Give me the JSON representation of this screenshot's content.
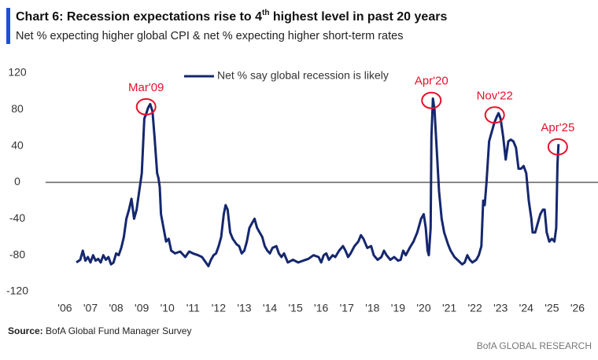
{
  "chart_data": {
    "type": "line",
    "title": [
      "Chart 6: Recession expectations rise to 4",
      "th",
      " highest level in past 20 years"
    ],
    "subtitle": "Net % expecting higher global CPI & net % expecting higher short-term rates",
    "source_label": "Source:",
    "source": " BofA Global Fund Manager Survey",
    "brand": "BofA GLOBAL RESEARCH",
    "legend": "top",
    "x": [
      2006.45,
      2006.6,
      2006.7,
      2006.8,
      2006.9,
      2007.0,
      2007.1,
      2007.2,
      2007.3,
      2007.4,
      2007.5,
      2007.6,
      2007.7,
      2007.8,
      2007.9,
      2008.0,
      2008.1,
      2008.2,
      2008.3,
      2008.4,
      2008.5,
      2008.6,
      2008.7,
      2008.8,
      2008.9,
      2009.0,
      2009.05,
      2009.1,
      2009.17,
      2009.25,
      2009.33,
      2009.42,
      2009.5,
      2009.6,
      2009.65,
      2009.7,
      2009.75,
      2009.85,
      2009.95,
      2010.05,
      2010.15,
      2010.3,
      2010.5,
      2010.7,
      2010.85,
      2011.0,
      2011.2,
      2011.35,
      2011.5,
      2011.6,
      2011.7,
      2011.8,
      2011.9,
      2012.0,
      2012.1,
      2012.2,
      2012.27,
      2012.35,
      2012.45,
      2012.55,
      2012.7,
      2012.8,
      2012.9,
      2013.0,
      2013.1,
      2013.2,
      2013.3,
      2013.4,
      2013.5,
      2013.6,
      2013.7,
      2013.8,
      2013.9,
      2014.0,
      2014.1,
      2014.25,
      2014.35,
      2014.45,
      2014.55,
      2014.7,
      2014.9,
      2015.1,
      2015.3,
      2015.5,
      2015.7,
      2015.9,
      2016.0,
      2016.1,
      2016.2,
      2016.3,
      2016.45,
      2016.55,
      2016.7,
      2016.85,
      2016.95,
      2017.05,
      2017.15,
      2017.3,
      2017.45,
      2017.55,
      2017.65,
      2017.8,
      2017.95,
      2018.05,
      2018.2,
      2018.35,
      2018.45,
      2018.55,
      2018.7,
      2018.85,
      2019.0,
      2019.1,
      2019.2,
      2019.3,
      2019.45,
      2019.6,
      2019.75,
      2019.9,
      2020.0,
      2020.08,
      2020.15,
      2020.2,
      2020.27,
      2020.3,
      2020.36,
      2020.42,
      2020.5,
      2020.6,
      2020.7,
      2020.8,
      2020.95,
      2021.05,
      2021.2,
      2021.35,
      2021.5,
      2021.6,
      2021.7,
      2021.8,
      2021.9,
      2022.05,
      2022.15,
      2022.25,
      2022.32,
      2022.38,
      2022.45,
      2022.55,
      2022.65,
      2022.75,
      2022.85,
      2022.92,
      2023.0,
      2023.1,
      2023.2,
      2023.3,
      2023.4,
      2023.5,
      2023.6,
      2023.7,
      2023.8,
      2023.9,
      2024.0,
      2024.1,
      2024.2,
      2024.25,
      2024.35,
      2024.45,
      2024.55,
      2024.65,
      2024.72,
      2024.8,
      2024.9,
      2025.0,
      2025.1,
      2025.17,
      2025.22,
      2025.26
    ],
    "series": [
      {
        "name": "Net % say global recession is likely",
        "color": "#15276e",
        "values": [
          -88,
          -85,
          -75,
          -86,
          -82,
          -88,
          -80,
          -86,
          -84,
          -88,
          -80,
          -85,
          -82,
          -90,
          -88,
          -78,
          -80,
          -72,
          -60,
          -40,
          -30,
          -18,
          -40,
          -30,
          -10,
          10,
          40,
          70,
          75,
          82,
          86,
          78,
          50,
          10,
          5,
          -5,
          -35,
          -50,
          -65,
          -62,
          -75,
          -78,
          -76,
          -82,
          -76,
          -78,
          -80,
          -82,
          -88,
          -92,
          -85,
          -80,
          -78,
          -70,
          -60,
          -35,
          -25,
          -30,
          -55,
          -62,
          -68,
          -70,
          -78,
          -75,
          -65,
          -50,
          -45,
          -40,
          -50,
          -55,
          -60,
          -70,
          -75,
          -78,
          -72,
          -70,
          -78,
          -82,
          -78,
          -88,
          -85,
          -88,
          -86,
          -84,
          -80,
          -82,
          -88,
          -80,
          -78,
          -85,
          -80,
          -82,
          -75,
          -70,
          -75,
          -82,
          -78,
          -70,
          -65,
          -58,
          -62,
          -72,
          -70,
          -80,
          -85,
          -82,
          -75,
          -80,
          -85,
          -82,
          -86,
          -85,
          -75,
          -80,
          -72,
          -65,
          -55,
          -40,
          -35,
          -50,
          -75,
          -80,
          -50,
          50,
          92,
          80,
          40,
          -10,
          -40,
          -55,
          -68,
          -75,
          -82,
          -86,
          -90,
          -88,
          -80,
          -85,
          -88,
          -85,
          -80,
          -70,
          -20,
          -25,
          0,
          45,
          55,
          65,
          72,
          76,
          70,
          50,
          25,
          45,
          47,
          45,
          38,
          15,
          15,
          18,
          10,
          -20,
          -40,
          -55,
          -55,
          -45,
          -35,
          -30,
          -30,
          -55,
          -65,
          -62,
          -65,
          -50,
          20,
          42
        ]
      }
    ],
    "annotations": [
      {
        "text": "Mar'09",
        "x": 2009.17,
        "y": 83,
        "color": "#e8102a"
      },
      {
        "text": "Apr'20",
        "x": 2020.3,
        "y": 90,
        "color": "#e8102a"
      },
      {
        "text": "Nov'22",
        "x": 2022.77,
        "y": 74,
        "color": "#e8102a"
      },
      {
        "text": "Apr'25",
        "x": 2025.23,
        "y": 39,
        "color": "#e8102a"
      }
    ],
    "xlim": [
      2005.25,
      2026.8
    ],
    "xticks": [
      {
        "value": 2006,
        "label": "'06"
      },
      {
        "value": 2007,
        "label": "'07"
      },
      {
        "value": 2008,
        "label": "'08"
      },
      {
        "value": 2009,
        "label": "'09"
      },
      {
        "value": 2010,
        "label": "'10"
      },
      {
        "value": 2011,
        "label": "'11"
      },
      {
        "value": 2012,
        "label": "'12"
      },
      {
        "value": 2013,
        "label": "'13"
      },
      {
        "value": 2014,
        "label": "'14"
      },
      {
        "value": 2015,
        "label": "'15"
      },
      {
        "value": 2016,
        "label": "'16"
      },
      {
        "value": 2017,
        "label": "'17"
      },
      {
        "value": 2018,
        "label": "'18"
      },
      {
        "value": 2019,
        "label": "'19"
      },
      {
        "value": 2020,
        "label": "'20"
      },
      {
        "value": 2021,
        "label": "'21"
      },
      {
        "value": 2022,
        "label": "'22"
      },
      {
        "value": 2023,
        "label": "'23"
      },
      {
        "value": 2024,
        "label": "'24"
      },
      {
        "value": 2025,
        "label": "'25"
      },
      {
        "value": 2026,
        "label": "'26"
      }
    ],
    "ylim": [
      -120,
      120
    ],
    "yticks": [
      120,
      80,
      40,
      0,
      -40,
      -80,
      -120
    ]
  }
}
